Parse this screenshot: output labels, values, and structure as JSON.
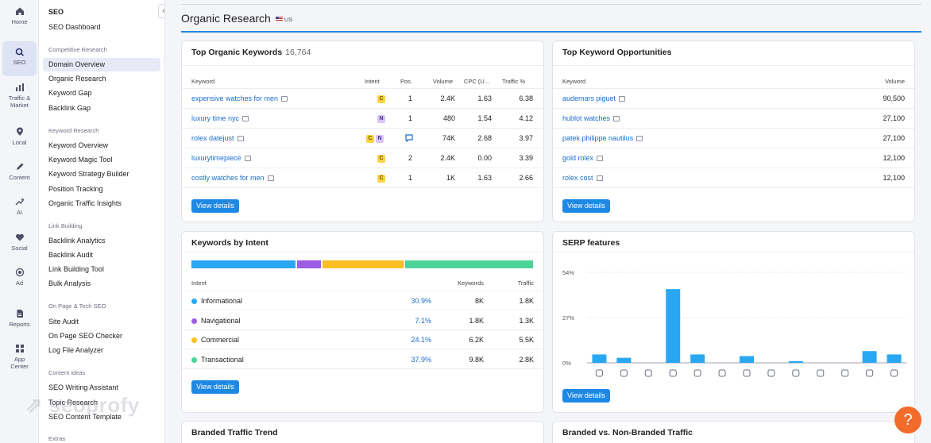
{
  "rail": [
    {
      "label": "Home",
      "icon": "home-icon"
    },
    {
      "label": "SEO",
      "icon": "seo-icon",
      "active": true
    },
    {
      "label": "Traffic &",
      "label2": "Market",
      "icon": "traffic-icon"
    },
    {
      "label": "Local",
      "icon": "location-icon"
    },
    {
      "label": "Content",
      "icon": "content-icon"
    },
    {
      "label": "AI",
      "icon": "ai-icon"
    },
    {
      "label": "Social",
      "icon": "social-icon"
    },
    {
      "label": "Ad",
      "icon": "ad-icon"
    },
    {
      "label": "Reports",
      "icon": "reports-icon"
    },
    {
      "label": "App",
      "label2": "Center",
      "icon": "app-center-icon"
    }
  ],
  "sidebar": {
    "title": "SEO",
    "collapse": "«",
    "dashboard": "SEO Dashboard",
    "sections": [
      {
        "title": "Competitive Research",
        "items": [
          "Domain Overview",
          "Organic Research",
          "Keyword Gap",
          "Backlink Gap"
        ]
      },
      {
        "title": "Keyword Research",
        "items": [
          "Keyword Overview",
          "Keyword Magic Tool",
          "Keyword Strategy Builder",
          "Position Tracking",
          "Organic Traffic Insights"
        ]
      },
      {
        "title": "Link Building",
        "items": [
          "Backlink Analytics",
          "Backlink Audit",
          "Link Building Tool",
          "Bulk Analysis"
        ]
      },
      {
        "title": "On Page & Tech SEO",
        "items": [
          "Site Audit",
          "On Page SEO Checker",
          "Log File Analyzer"
        ]
      },
      {
        "title": "Content ideas",
        "items": [
          "SEO Writing Assistant",
          "Topic Research",
          "SEO Content Template"
        ]
      },
      {
        "title": "Extras",
        "items": []
      }
    ],
    "active_item": "Domain Overview",
    "watermark": "seoprofy"
  },
  "page": {
    "title": "Organic Research",
    "db": "US"
  },
  "top_keywords": {
    "title": "Top Organic Keywords",
    "count": "16,764",
    "headers": {
      "keyword": "Keyword",
      "intent": "Intent",
      "pos": "Pos.",
      "volume": "Volume",
      "cpc": "CPC (U...",
      "traffic": "Traffic %"
    },
    "rows": [
      {
        "keyword": "expensive watches for men",
        "intents": [
          "C"
        ],
        "pos": "1",
        "volume": "2.4K",
        "cpc": "1.63",
        "traffic": "6.38"
      },
      {
        "keyword": "luxury time nyc",
        "intents": [
          "N"
        ],
        "pos": "1",
        "volume": "480",
        "cpc": "1.54",
        "traffic": "4.12"
      },
      {
        "keyword": "rolex datejust",
        "intents": [
          "C",
          "N"
        ],
        "pos": "",
        "volume": "74K",
        "cpc": "2.68",
        "traffic": "3.97"
      },
      {
        "keyword": "luxurytimepiece",
        "intents": [
          "C"
        ],
        "pos": "2",
        "volume": "2.4K",
        "cpc": "0.00",
        "traffic": "3.39"
      },
      {
        "keyword": "costly watches for men",
        "intents": [
          "C"
        ],
        "pos": "1",
        "volume": "1K",
        "cpc": "1.63",
        "traffic": "2.66"
      }
    ],
    "button": "View details"
  },
  "opportunities": {
    "title": "Top Keyword Opportunities",
    "headers": {
      "keyword": "Keyword",
      "volume": "Volume"
    },
    "rows": [
      {
        "keyword": "audemars piguet",
        "volume": "90,500"
      },
      {
        "keyword": "hublot watches",
        "volume": "27,100"
      },
      {
        "keyword": "patek philippe nautilus",
        "volume": "27,100"
      },
      {
        "keyword": "gold rolex",
        "volume": "12,100"
      },
      {
        "keyword": "rolex cost",
        "volume": "12,100"
      }
    ],
    "button": "View details"
  },
  "intent": {
    "title": "Keywords by Intent",
    "headers": {
      "intent": "Intent",
      "keywords": "Keywords",
      "traffic": "Traffic"
    },
    "rows": [
      {
        "name": "Informational",
        "pct": "30.9%",
        "share": 30.9,
        "keywords": "8K",
        "traffic": "1.8K",
        "color": "#2aa7f2"
      },
      {
        "name": "Navigational",
        "pct": "7.1%",
        "share": 7.1,
        "keywords": "1.8K",
        "traffic": "1.3K",
        "color": "#9b5de5"
      },
      {
        "name": "Commercial",
        "pct": "24.1%",
        "share": 24.1,
        "keywords": "6.2K",
        "traffic": "5.5K",
        "color": "#fbbf24"
      },
      {
        "name": "Transactional",
        "pct": "37.9%",
        "share": 37.9,
        "keywords": "9.8K",
        "traffic": "2.8K",
        "color": "#4ed39a"
      }
    ],
    "button": "View details"
  },
  "serp": {
    "title": "SERP features",
    "button": "View details",
    "icons": [
      "link-icon",
      "featured-snippet-icon",
      "star-icon",
      "image-icon",
      "image-pack-icon",
      "video-icon",
      "review-icon",
      "local-pack-icon",
      "knowledge-panel-icon",
      "ads-icon",
      "twitter-icon",
      "tag-icon",
      "list-icon"
    ]
  },
  "chart_data": {
    "type": "bar",
    "title": "SERP features",
    "xlabel": "",
    "ylabel": "",
    "ylim": [
      0,
      54
    ],
    "yticks": [
      "54%",
      "27%",
      "0%"
    ],
    "categories": [
      "Sitelinks",
      "Featured snippet",
      "Reviews",
      "Image",
      "Image pack",
      "Video",
      "Questions",
      "Local pack",
      "Knowledge panel",
      "Related searches",
      "Twitter",
      "Shopping",
      "FAQ"
    ],
    "values": [
      5,
      3,
      0,
      44,
      5,
      0,
      4,
      0,
      1,
      0,
      0,
      7,
      5
    ]
  },
  "bottom": {
    "left_title": "Branded Traffic Trend",
    "right_title": "Branded vs. Non-Branded Traffic"
  },
  "help": "?"
}
